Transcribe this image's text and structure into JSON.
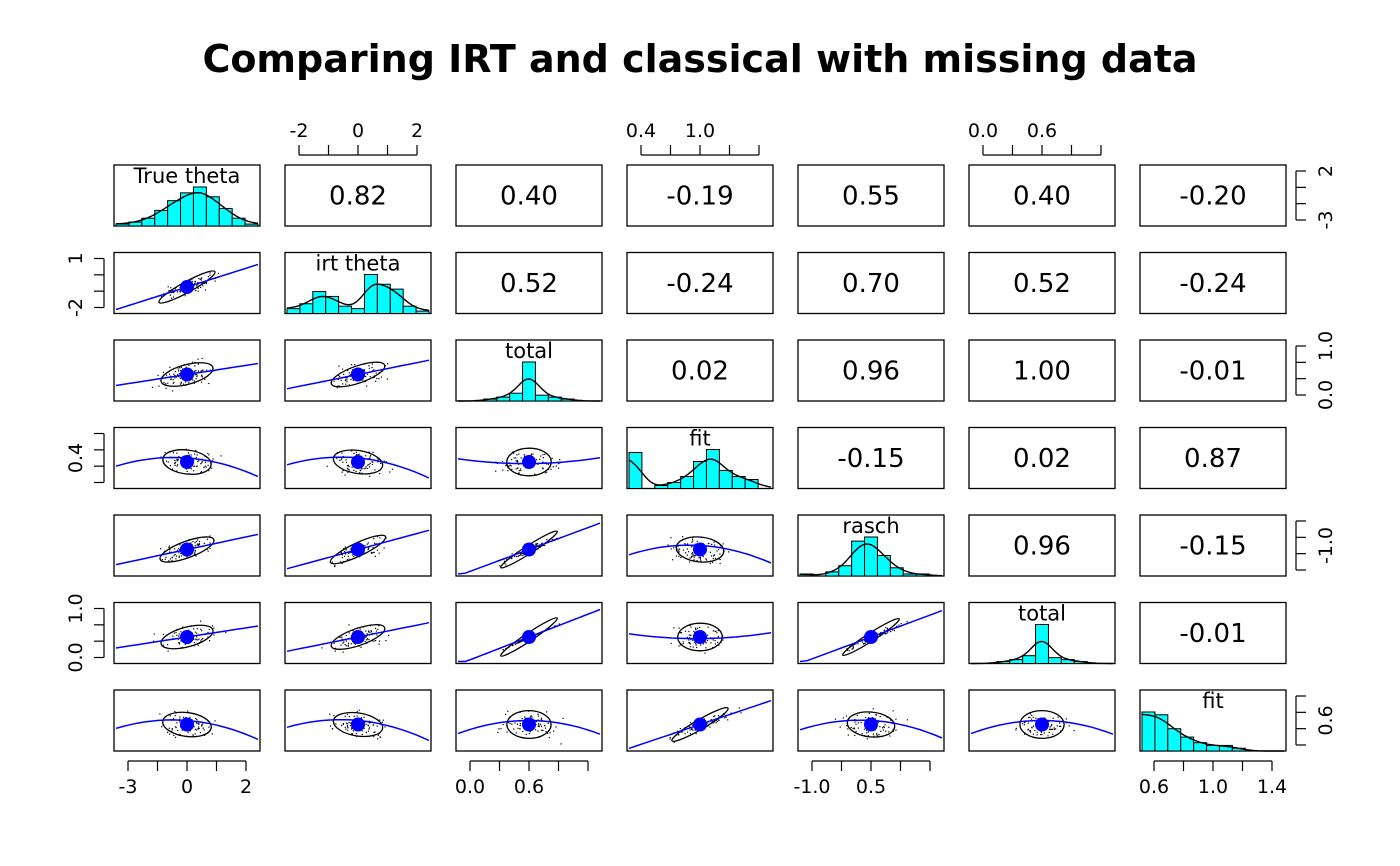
{
  "chart_data": {
    "type": "scatter",
    "title": "Comparing IRT and classical with missing data",
    "variables": [
      "True theta",
      "irt theta",
      "total",
      "fit",
      "rasch",
      "total",
      "fit"
    ],
    "correlations": [
      [
        "",
        "0.82",
        "0.40",
        "-0.19",
        "0.55",
        "0.40",
        "-0.20"
      ],
      [
        "",
        "",
        "0.52",
        "-0.24",
        "0.70",
        "0.52",
        "-0.24"
      ],
      [
        "",
        "",
        "",
        "0.02",
        "0.96",
        "1.00",
        "-0.01"
      ],
      [
        "",
        "",
        "",
        "",
        "-0.15",
        "0.02",
        "0.87"
      ],
      [
        "",
        "",
        "",
        "",
        "",
        "0.96",
        "-0.15"
      ],
      [
        "",
        "",
        "",
        "",
        "",
        "",
        "-0.01"
      ],
      [
        "",
        "",
        "",
        "",
        "",
        "",
        ""
      ]
    ],
    "axes": {
      "top": [
        {
          "column": 2,
          "ticks": [
            "-2",
            "0",
            "2"
          ]
        },
        {
          "column": 4,
          "ticks": [
            "0.4",
            "1.0"
          ]
        },
        {
          "column": 6,
          "ticks": [
            "0.0",
            "0.6"
          ]
        }
      ],
      "bottom": [
        {
          "column": 1,
          "ticks": [
            "-3",
            "0",
            "2"
          ]
        },
        {
          "column": 3,
          "ticks": [
            "0.0",
            "0.6"
          ]
        },
        {
          "column": 5,
          "ticks": [
            "-1.0",
            "0.5"
          ]
        },
        {
          "column": 7,
          "ticks": [
            "0.6",
            "1.0",
            "1.4"
          ]
        }
      ],
      "left": [
        {
          "row": 2,
          "ticks": [
            "-2",
            "1"
          ]
        },
        {
          "row": 4,
          "ticks": [
            "0.4"
          ]
        },
        {
          "row": 6,
          "ticks": [
            "0.0",
            "1.0"
          ]
        }
      ],
      "right": [
        {
          "row": 1,
          "ticks": [
            "-3",
            "2"
          ]
        },
        {
          "row": 3,
          "ticks": [
            "0.0",
            "1.0"
          ]
        },
        {
          "row": 5,
          "ticks": [
            "-1.0"
          ]
        },
        {
          "row": 7,
          "ticks": [
            "0.6"
          ]
        }
      ]
    },
    "histograms": [
      [
        1,
        2,
        4,
        8,
        13,
        17,
        20,
        15,
        9,
        4,
        1
      ],
      [
        2,
        4,
        9,
        7,
        3,
        2,
        16,
        12,
        10,
        3,
        1
      ],
      [
        0,
        0,
        1,
        2,
        4,
        20,
        3,
        2,
        1,
        0,
        0
      ],
      [
        12,
        0,
        1,
        2,
        4,
        9,
        13,
        6,
        4,
        3,
        0
      ],
      [
        1,
        0,
        2,
        5,
        17,
        19,
        10,
        4,
        1,
        1,
        0
      ],
      [
        0,
        0,
        1,
        2,
        4,
        20,
        3,
        2,
        1,
        0,
        0
      ],
      [
        14,
        13,
        8,
        5,
        3,
        2,
        2,
        1,
        0,
        0,
        0
      ]
    ],
    "colors": {
      "bars": "#00ffff",
      "points": "#0000ff",
      "loess": "#0000ff",
      "ellipse": "#000000"
    }
  }
}
